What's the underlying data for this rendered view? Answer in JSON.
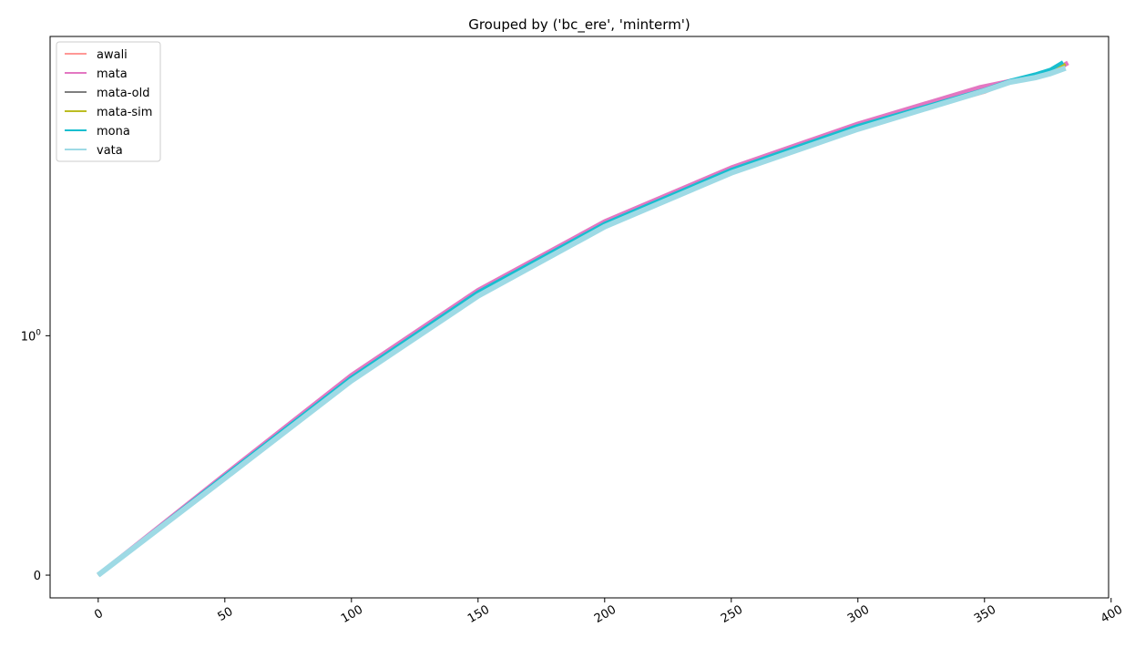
{
  "chart_data": {
    "type": "line",
    "title": "Grouped by ('bc_ere', 'minterm')",
    "xlabel": "",
    "ylabel": "",
    "xlim": [
      -19,
      399
    ],
    "ylim": [
      -0.095,
      2.25
    ],
    "y_scale": "symlog (linear near 0, logarithmic above 1)",
    "x_ticks": [
      {
        "value": 0,
        "label": "0"
      },
      {
        "value": 50,
        "label": "50"
      },
      {
        "value": 100,
        "label": "100"
      },
      {
        "value": 150,
        "label": "150"
      },
      {
        "value": 200,
        "label": "200"
      },
      {
        "value": 250,
        "label": "250"
      },
      {
        "value": 300,
        "label": "300"
      },
      {
        "value": 350,
        "label": "350"
      },
      {
        "value": 400,
        "label": "400"
      }
    ],
    "y_ticks": [
      {
        "value": 0,
        "label": "0",
        "exp": ""
      },
      {
        "value": 1,
        "label": "10",
        "exp": "0"
      }
    ],
    "x_tick_rotation_deg": 30,
    "grid": false,
    "legend": "top-left",
    "series": [
      {
        "name": "awali",
        "color": "#ff9896",
        "width": 3.5,
        "x": [
          0,
          50,
          100,
          150,
          200,
          250,
          300,
          350,
          360,
          365,
          370,
          375,
          380,
          382
        ],
        "y": [
          0,
          0.41,
          0.82,
          1.175,
          1.462,
          1.685,
          1.87,
          2.017,
          2.061,
          2.071,
          2.083,
          2.098,
          2.117,
          2.13
        ]
      },
      {
        "name": "mata",
        "color": "#e377c2",
        "width": 5,
        "x": [
          0,
          50,
          100,
          150,
          200,
          250,
          300,
          348,
          360,
          370,
          376,
          380,
          383
        ],
        "y": [
          0,
          0.42,
          0.835,
          1.19,
          1.477,
          1.702,
          1.885,
          2.037,
          2.063,
          2.085,
          2.104,
          2.122,
          2.14
        ]
      },
      {
        "name": "mata-old",
        "color": "#7f7f7f",
        "width": 1.5,
        "x": [
          0,
          50,
          100,
          150,
          200,
          250,
          300,
          350,
          360,
          370,
          378,
          382
        ],
        "y": [
          0,
          0.41,
          0.815,
          1.167,
          1.457,
          1.682,
          1.866,
          2.025,
          2.056,
          2.083,
          2.108,
          2.13
        ]
      },
      {
        "name": "mata-sim",
        "color": "#bcbd22",
        "width": 3,
        "x": [
          0,
          50,
          100,
          150,
          200,
          250,
          300,
          350,
          360,
          370,
          378,
          382
        ],
        "y": [
          0,
          0.415,
          0.826,
          1.182,
          1.469,
          1.694,
          1.877,
          2.027,
          2.061,
          2.085,
          2.108,
          2.135
        ]
      },
      {
        "name": "mona",
        "color": "#17becf",
        "width": 4,
        "x": [
          0,
          50,
          100,
          150,
          200,
          250,
          300,
          350,
          360,
          370,
          376,
          381
        ],
        "y": [
          0,
          0.415,
          0.826,
          1.182,
          1.469,
          1.694,
          1.877,
          2.028,
          2.065,
          2.092,
          2.112,
          2.143
        ]
      },
      {
        "name": "vata",
        "color": "#9edae5",
        "width": 6,
        "x": [
          0,
          50,
          100,
          150,
          200,
          250,
          300,
          350,
          360,
          370,
          376,
          382
        ],
        "y": [
          0,
          0.405,
          0.812,
          1.166,
          1.455,
          1.68,
          1.863,
          2.023,
          2.059,
          2.078,
          2.095,
          2.118
        ]
      }
    ]
  }
}
